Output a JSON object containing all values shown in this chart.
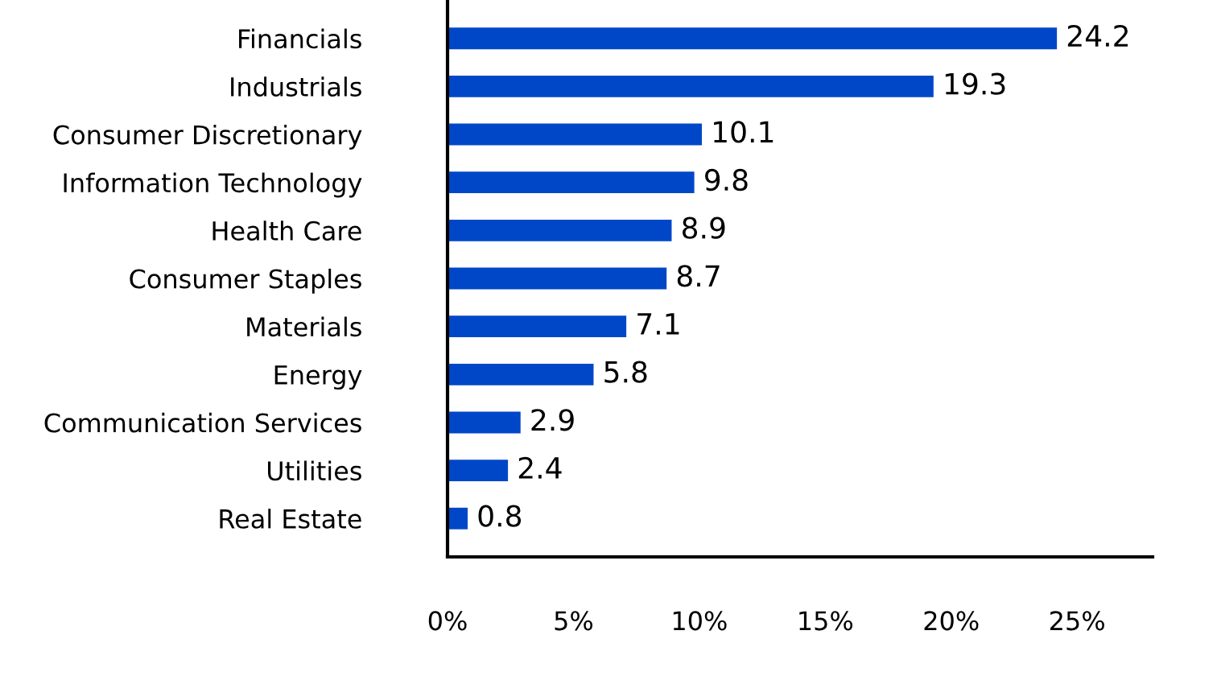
{
  "chart_data": {
    "type": "bar",
    "orientation": "horizontal",
    "categories": [
      "Financials",
      "Industrials",
      "Consumer Discretionary",
      "Information Technology",
      "Health Care",
      "Consumer Staples",
      "Materials",
      "Energy",
      "Communication Services",
      "Utilities",
      "Real Estate"
    ],
    "values": [
      24.2,
      19.3,
      10.1,
      9.8,
      8.9,
      8.7,
      7.1,
      5.8,
      2.9,
      2.4,
      0.8
    ],
    "color": "#0047c8",
    "data_labels": true,
    "grid": false,
    "legend": false,
    "xlim": [
      0,
      28
    ],
    "xticks": [
      {
        "value": 0,
        "label": "0%"
      },
      {
        "value": 5,
        "label": "5%"
      },
      {
        "value": 10,
        "label": "10%"
      },
      {
        "value": 15,
        "label": "15%"
      },
      {
        "value": 20,
        "label": "20%"
      },
      {
        "value": 25,
        "label": "25%"
      }
    ]
  }
}
